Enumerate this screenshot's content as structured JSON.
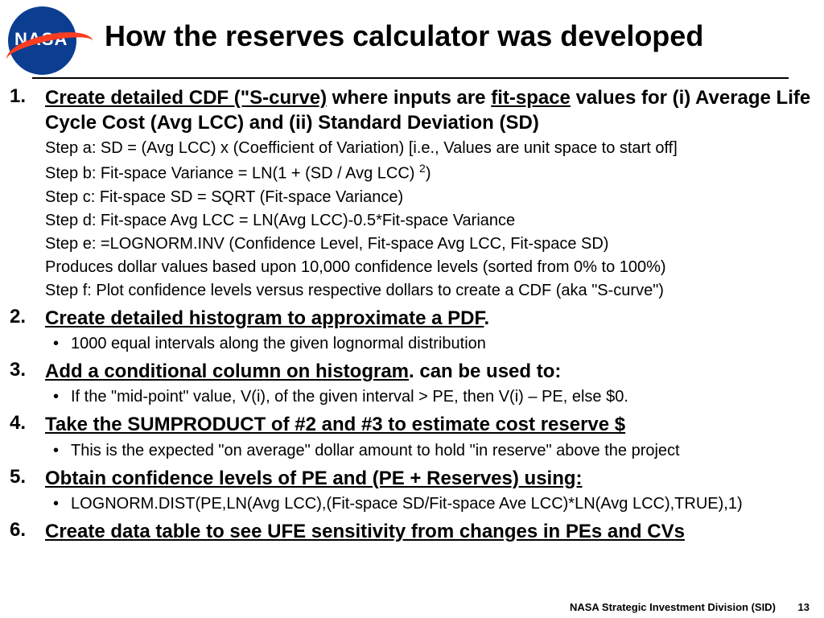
{
  "logo": {
    "text": "NASA"
  },
  "title": "How the reserves calculator was developed",
  "items": [
    {
      "heading_parts": {
        "p1": "Create detailed CDF (\"S-curve)",
        "p2": " where inputs are ",
        "p3": "fit-space",
        "p4": " values for (i) Average Life Cycle Cost (Avg LCC) and (ii) Standard Deviation (SD)"
      },
      "steps": [
        "Step a: SD = (Avg LCC) x (Coefficient of Variation)  [i.e., Values are unit space to start off]",
        "Step b: Fit-space Variance = LN(1 + (SD / Avg LCC) ",
        "Step c: Fit-space SD = SQRT (Fit-space Variance)",
        "Step d: Fit-space Avg LCC = LN(Avg LCC)-0.5*Fit-space Variance",
        "Step e: =LOGNORM.INV (Confidence Level, Fit-space Avg LCC, Fit-space SD)",
        "Produces dollar values based upon 10,000 confidence levels (sorted from 0% to 100%)",
        "Step f:  Plot confidence levels versus respective dollars to create a CDF (aka \"S-curve\")"
      ],
      "step_b_sup": "2",
      "step_b_tail": ")"
    },
    {
      "heading_parts": {
        "p1": "Create detailed histogram to approximate a PDF",
        "p2": "."
      },
      "bullets": [
        "1000 equal intervals along the given lognormal distribution"
      ]
    },
    {
      "heading_parts": {
        "p1": "Add a conditional column on histogram",
        "p2": ". can be used to:"
      },
      "bullets": [
        "If the \"mid-point\" value, V(i), of the given interval > PE, then V(i) – PE, else $0."
      ]
    },
    {
      "heading_parts": {
        "p1": "Take the SUMPRODUCT of #2 and #3 to estimate cost reserve $"
      },
      "bullets": [
        "This is the expected \"on average\" dollar amount to hold \"in reserve\" above the project"
      ]
    },
    {
      "heading_parts": {
        "p1": "Obtain confidence levels of PE and (PE + Reserves) using:"
      },
      "bullets": [
        "LOGNORM.DIST(PE,LN(Avg LCC),(Fit-space SD/Fit-space Ave LCC)*LN(Avg LCC),TRUE),1)"
      ]
    },
    {
      "heading_parts": {
        "p1": "Create data table to see UFE sensitivity from changes in PEs and CVs"
      }
    }
  ],
  "footer": {
    "org": "NASA Strategic Investment Division (SID)",
    "page": "13"
  }
}
